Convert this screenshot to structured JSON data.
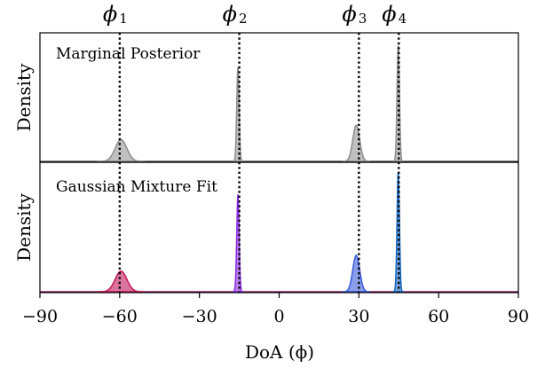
{
  "chart_data": {
    "type": "area",
    "xlabel": "DoA (ϕ)",
    "ylabel": "Density",
    "xlim": [
      -90,
      90
    ],
    "xticks": [
      {
        "value": -90,
        "label": "−90"
      },
      {
        "value": -60,
        "label": "−60"
      },
      {
        "value": -30,
        "label": "−30"
      },
      {
        "value": 0,
        "label": "0"
      },
      {
        "value": 30,
        "label": "30"
      },
      {
        "value": 60,
        "label": "60"
      },
      {
        "value": 90,
        "label": "90"
      }
    ],
    "true_doas": [
      {
        "symbol": "ϕ",
        "sub": "1",
        "value": -60
      },
      {
        "symbol": "ϕ",
        "sub": "2",
        "value": -15
      },
      {
        "symbol": "ϕ",
        "sub": "3",
        "value": 30
      },
      {
        "symbol": "ϕ",
        "sub": "4",
        "value": 45
      }
    ],
    "panels": [
      {
        "label": "Marginal Posterior",
        "ylabel": "Density",
        "peaks": [
          {
            "center": -59.5,
            "width": 2.2,
            "height": 0.18,
            "color": "#8c8c8c"
          },
          {
            "center": -15.5,
            "width": 0.45,
            "height": 0.78,
            "color": "#8c8c8c"
          },
          {
            "center": 29.0,
            "width": 1.3,
            "height": 0.3,
            "color": "#8c8c8c"
          },
          {
            "center": 44.8,
            "width": 0.45,
            "height": 0.96,
            "color": "#8c8c8c"
          }
        ]
      },
      {
        "label": "Gaussian Mixture Fit",
        "ylabel": "Density",
        "peaks": [
          {
            "center": -59.5,
            "width": 2.2,
            "height": 0.17,
            "color": "#c2185b"
          },
          {
            "center": -15.5,
            "width": 0.45,
            "height": 0.8,
            "color": "#8a2be2"
          },
          {
            "center": 29.0,
            "width": 1.3,
            "height": 0.3,
            "color": "#3b5bdb"
          },
          {
            "center": 44.8,
            "width": 0.45,
            "height": 0.98,
            "color": "#1565c0"
          }
        ]
      }
    ]
  }
}
